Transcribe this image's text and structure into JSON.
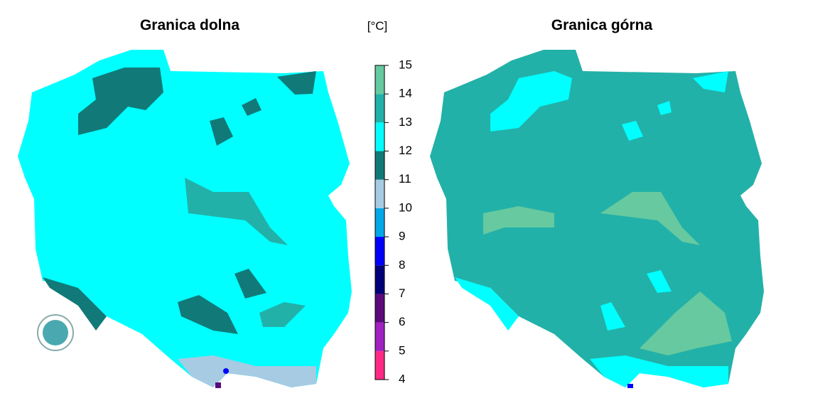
{
  "maps": [
    {
      "title": "Granica dolna"
    },
    {
      "title": "Granica górna"
    }
  ],
  "legend": {
    "unit": "[°C]",
    "ticks": [
      4,
      5,
      6,
      7,
      8,
      9,
      10,
      11,
      12,
      13,
      14,
      15
    ],
    "colors": [
      "#ff2a85",
      "#a020c0",
      "#5a0a7a",
      "#00007a",
      "#0000ff",
      "#00a8e8",
      "#a6cbe3",
      "#117a78",
      "#00ffff",
      "#22b1a8",
      "#66c9a0"
    ]
  }
}
